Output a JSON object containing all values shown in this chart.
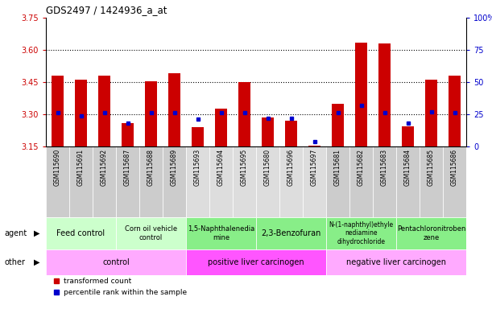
{
  "title": "GDS2497 / 1424936_a_at",
  "samples": [
    "GSM115690",
    "GSM115691",
    "GSM115692",
    "GSM115687",
    "GSM115688",
    "GSM115689",
    "GSM115693",
    "GSM115694",
    "GSM115695",
    "GSM115680",
    "GSM115696",
    "GSM115697",
    "GSM115681",
    "GSM115682",
    "GSM115683",
    "GSM115684",
    "GSM115685",
    "GSM115686"
  ],
  "transformed_counts": [
    3.48,
    3.46,
    3.48,
    3.26,
    3.455,
    3.49,
    3.24,
    3.325,
    3.45,
    3.285,
    3.27,
    3.155,
    3.35,
    3.635,
    3.63,
    3.245,
    3.46,
    3.48
  ],
  "percentile_ranks": [
    26,
    24,
    26,
    18,
    26,
    26,
    21,
    26,
    26,
    22,
    22,
    4,
    26,
    32,
    26,
    18,
    27,
    26
  ],
  "y_min": 3.15,
  "y_max": 3.75,
  "y_ticks_left": [
    3.15,
    3.3,
    3.45,
    3.6,
    3.75
  ],
  "y_ticks_right_vals": [
    0,
    25,
    50,
    75,
    100
  ],
  "dotted_lines": [
    3.3,
    3.45,
    3.6
  ],
  "bar_color": "#cc0000",
  "dot_color": "#0000cc",
  "agent_groups": [
    {
      "label": "Feed control",
      "start": 0,
      "end": 3,
      "color": "#ccffcc",
      "fontsize": 7
    },
    {
      "label": "Corn oil vehicle\ncontrol",
      "start": 3,
      "end": 6,
      "color": "#ccffcc",
      "fontsize": 6
    },
    {
      "label": "1,5-Naphthalenedia\nmine",
      "start": 6,
      "end": 9,
      "color": "#88ee88",
      "fontsize": 6
    },
    {
      "label": "2,3-Benzofuran",
      "start": 9,
      "end": 12,
      "color": "#88ee88",
      "fontsize": 7
    },
    {
      "label": "N-(1-naphthyl)ethyle\nnediamine\ndihydrochloride",
      "start": 12,
      "end": 15,
      "color": "#88ee88",
      "fontsize": 5.5
    },
    {
      "label": "Pentachloronitroben\nzene",
      "start": 15,
      "end": 18,
      "color": "#88ee88",
      "fontsize": 6
    }
  ],
  "other_groups": [
    {
      "label": "control",
      "start": 0,
      "end": 6,
      "color": "#ffaaff"
    },
    {
      "label": "positive liver carcinogen",
      "start": 6,
      "end": 12,
      "color": "#ff55ff"
    },
    {
      "label": "negative liver carcinogen",
      "start": 12,
      "end": 18,
      "color": "#ffaaff"
    }
  ],
  "sample_bg_colors": [
    "#cccccc",
    "#cccccc",
    "#cccccc",
    "#cccccc",
    "#cccccc",
    "#cccccc",
    "#dddddd",
    "#dddddd",
    "#dddddd",
    "#dddddd",
    "#dddddd",
    "#dddddd",
    "#cccccc",
    "#cccccc",
    "#cccccc",
    "#cccccc",
    "#cccccc",
    "#cccccc"
  ],
  "axis_color_left": "#cc0000",
  "axis_color_right": "#0000cc"
}
